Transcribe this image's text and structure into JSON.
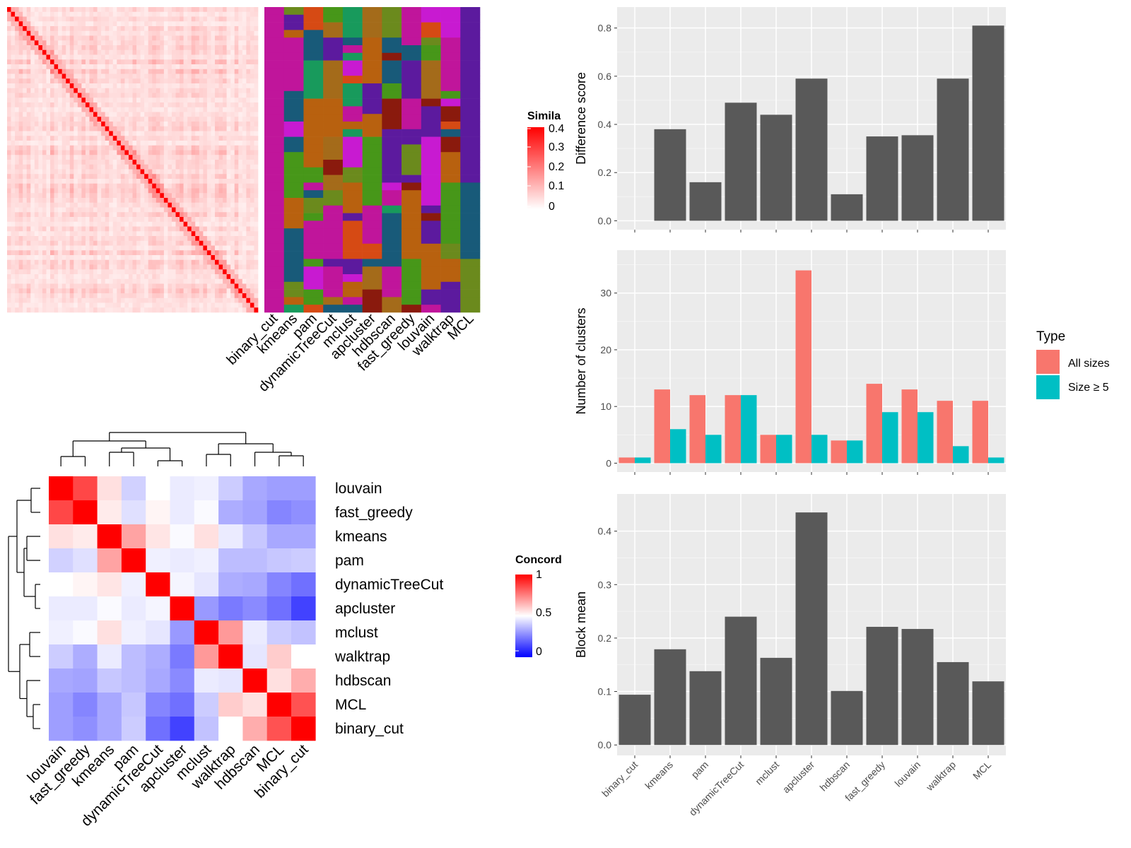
{
  "methods_similarity_cols": [
    "binary_cut",
    "kmeans",
    "pam",
    "dynamicTreeCut",
    "mclust",
    "apcluster",
    "hdbscan",
    "fast_greedy",
    "louvain",
    "walktrap",
    "MCL"
  ],
  "method_colors": {
    "binary_cut": "#c0159b",
    "kmeans": "#d61bd6",
    "pam": "#185a79",
    "dynamicTreeCut": "#6b8a1d",
    "mclust": "#479719",
    "apcluster": "#c81ad1",
    "hdbscan": "#185a79",
    "fast_greedy": "#189a5c",
    "louvain": "#c0159b",
    "walktrap": "#c0159b",
    "MCL": "#c0159b"
  },
  "similarity_legend": {
    "title": "Simila",
    "ticks": [
      "0.4",
      "0.3",
      "0.2",
      "0.1",
      "0"
    ]
  },
  "concordance_legend": {
    "title": "Concord",
    "ticks": [
      "1",
      "0.5",
      "0"
    ]
  },
  "concordance": {
    "rows": [
      "louvain",
      "fast_greedy",
      "kmeans",
      "pam",
      "dynamicTreeCut",
      "apcluster",
      "mclust",
      "walktrap",
      "hdbscan",
      "MCL",
      "binary_cut"
    ],
    "cols": [
      "louvain",
      "fast_greedy",
      "kmeans",
      "pam",
      "dynamicTreeCut",
      "apcluster",
      "mclust",
      "walktrap",
      "hdbscan",
      "MCL",
      "binary_cut"
    ],
    "values": [
      [
        1.0,
        0.86,
        0.56,
        0.41,
        0.5,
        0.46,
        0.47,
        0.4,
        0.33,
        0.31,
        0.31
      ],
      [
        0.86,
        1.0,
        0.54,
        0.44,
        0.52,
        0.46,
        0.49,
        0.34,
        0.32,
        0.26,
        0.28
      ],
      [
        0.56,
        0.54,
        1.0,
        0.68,
        0.55,
        0.49,
        0.56,
        0.46,
        0.39,
        0.33,
        0.33
      ],
      [
        0.41,
        0.44,
        0.68,
        1.0,
        0.47,
        0.46,
        0.47,
        0.37,
        0.37,
        0.39,
        0.4
      ],
      [
        0.5,
        0.52,
        0.55,
        0.47,
        1.0,
        0.48,
        0.45,
        0.34,
        0.33,
        0.26,
        0.22
      ],
      [
        0.46,
        0.46,
        0.49,
        0.46,
        0.48,
        1.0,
        0.3,
        0.24,
        0.27,
        0.22,
        0.13
      ],
      [
        0.47,
        0.49,
        0.56,
        0.47,
        0.45,
        0.3,
        1.0,
        0.7,
        0.46,
        0.4,
        0.38
      ],
      [
        0.4,
        0.34,
        0.46,
        0.37,
        0.34,
        0.24,
        0.7,
        1.0,
        0.45,
        0.6,
        0.5
      ],
      [
        0.33,
        0.32,
        0.39,
        0.37,
        0.33,
        0.27,
        0.46,
        0.45,
        1.0,
        0.56,
        0.66
      ],
      [
        0.31,
        0.26,
        0.33,
        0.39,
        0.26,
        0.22,
        0.4,
        0.6,
        0.56,
        1.0,
        0.84
      ],
      [
        0.31,
        0.28,
        0.33,
        0.4,
        0.22,
        0.13,
        0.38,
        0.5,
        0.66,
        0.84,
        1.0
      ]
    ]
  },
  "chart_data": [
    {
      "type": "bar",
      "categories": [
        "binary_cut",
        "kmeans",
        "pam",
        "dynamicTreeCut",
        "mclust",
        "apcluster",
        "hdbscan",
        "fast_greedy",
        "louvain",
        "walktrap",
        "MCL"
      ],
      "values": [
        0.0,
        0.38,
        0.16,
        0.49,
        0.44,
        0.59,
        0.11,
        0.35,
        0.355,
        0.59,
        0.81
      ],
      "ylabel": "Difference score",
      "yticks": [
        0.0,
        0.2,
        0.4,
        0.6,
        0.8
      ],
      "ytick_labels": [
        "0.0",
        "0.2",
        "0.4",
        "0.6",
        "0.8"
      ],
      "ylim": [
        0,
        0.85
      ],
      "color": "#595959"
    },
    {
      "type": "bar",
      "categories": [
        "binary_cut",
        "kmeans",
        "pam",
        "dynamicTreeCut",
        "mclust",
        "apcluster",
        "hdbscan",
        "fast_greedy",
        "louvain",
        "walktrap",
        "MCL"
      ],
      "series": [
        {
          "name": "All sizes",
          "values": [
            1,
            13,
            12,
            12,
            5,
            34,
            4,
            14,
            13,
            11,
            11
          ],
          "color": "#f8766d"
        },
        {
          "name": "Size ≥ 5",
          "values": [
            1,
            6,
            5,
            12,
            5,
            5,
            4,
            9,
            9,
            3,
            1
          ],
          "color": "#00bfc4"
        }
      ],
      "ylabel": "Number of clusters",
      "yticks": [
        0,
        10,
        20,
        30
      ],
      "ytick_labels": [
        "0",
        "10",
        "20",
        "30"
      ],
      "ylim": [
        0,
        36
      ],
      "legend": {
        "title": "Type",
        "position": "right"
      }
    },
    {
      "type": "bar",
      "categories": [
        "binary_cut",
        "kmeans",
        "pam",
        "dynamicTreeCut",
        "mclust",
        "apcluster",
        "hdbscan",
        "fast_greedy",
        "louvain",
        "walktrap",
        "MCL"
      ],
      "values": [
        0.094,
        0.179,
        0.138,
        0.24,
        0.163,
        0.435,
        0.101,
        0.221,
        0.217,
        0.155,
        0.119
      ],
      "ylabel": "Block mean",
      "yticks": [
        0.0,
        0.1,
        0.2,
        0.3,
        0.4
      ],
      "ytick_labels": [
        "0.0",
        "0.1",
        "0.2",
        "0.3",
        "0.4"
      ],
      "ylim": [
        0,
        0.45
      ],
      "color": "#595959"
    }
  ]
}
